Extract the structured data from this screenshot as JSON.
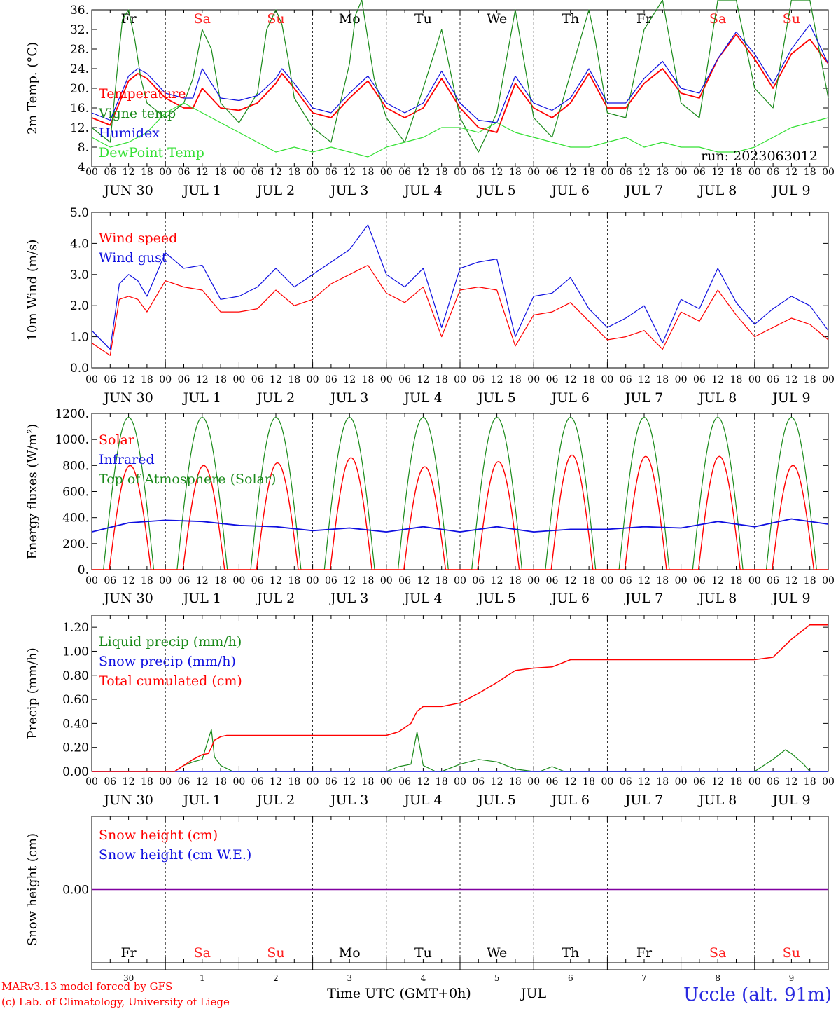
{
  "run_label": "run: 2023063012",
  "footer": {
    "model": "MARv3.13 model forced by GFS",
    "copyright": "(c) Lab. of Climatology, University of Liege",
    "time_axis": "Time UTC (GMT+0h)",
    "month": "JUL",
    "station": "Uccle (alt. 91m)"
  },
  "weekdays": [
    "Fr",
    "Sa",
    "Su",
    "Mo",
    "Tu",
    "We",
    "Th",
    "Fr",
    "Sa",
    "Su"
  ],
  "weekday_colors": [
    "#000000",
    "#ff2020",
    "#ff2020",
    "#000000",
    "#000000",
    "#000000",
    "#000000",
    "#000000",
    "#ff2020",
    "#ff2020"
  ],
  "day_numbers": [
    "30",
    "1",
    "2",
    "3",
    "4",
    "5",
    "6",
    "7",
    "8",
    "9"
  ],
  "day_labels": [
    "JUN 30",
    "JUL  1",
    "JUL  2",
    "JUL  3",
    "JUL  4",
    "JUL  5",
    "JUL  6",
    "JUL  7",
    "JUL  8",
    "JUL  9"
  ],
  "hour_ticks": [
    "00",
    "06",
    "12",
    "18"
  ],
  "hour_end": "00",
  "colors": {
    "red": "#ff0000",
    "green": "#1a8a1a",
    "blue": "#1010e0",
    "lightgreen": "#33e033",
    "purple": "#8000a0"
  },
  "chart_data": [
    {
      "type": "line",
      "ylabel": "2m Temp. (°C)",
      "ylim": [
        4,
        36
      ],
      "yticks": [
        "4.",
        "8.",
        "12.",
        "16.",
        "20.",
        "24.",
        "28.",
        "32.",
        "36."
      ],
      "x_unit": "hours since Jun 30 00 UTC",
      "series": [
        {
          "name": "Temperature",
          "color": "red",
          "x": [
            0,
            6,
            9,
            12,
            15,
            18,
            24,
            30,
            33,
            36,
            42,
            48,
            54,
            60,
            62,
            66,
            72,
            78,
            84,
            90,
            96,
            102,
            108,
            114,
            120,
            126,
            132,
            138,
            144,
            150,
            156,
            162,
            168,
            174,
            180,
            186,
            192,
            198,
            204,
            210,
            216,
            222,
            228,
            234,
            240
          ],
          "y": [
            14,
            12.5,
            17,
            21.5,
            23,
            22,
            18,
            16,
            16,
            20,
            16,
            15.5,
            17,
            21,
            23,
            20,
            15,
            14,
            18,
            21.5,
            16,
            14,
            16,
            22,
            16,
            12,
            11,
            21,
            16,
            14,
            17,
            23,
            16,
            16,
            21,
            24,
            19,
            18,
            26,
            31,
            26,
            20,
            27,
            30,
            25
          ]
        },
        {
          "name": "Vigne temp",
          "color": "green",
          "x": [
            0,
            6,
            9,
            10,
            12,
            14,
            16,
            18,
            24,
            30,
            33,
            36,
            39,
            42,
            48,
            54,
            57,
            60,
            62,
            64,
            66,
            72,
            78,
            84,
            86,
            88,
            90,
            92,
            96,
            102,
            108,
            114,
            120,
            126,
            132,
            138,
            144,
            150,
            156,
            162,
            164,
            168,
            174,
            180,
            186,
            192,
            198,
            204,
            210,
            216,
            222,
            228,
            234,
            240
          ],
          "y": [
            12,
            9,
            28,
            34,
            36,
            30,
            22,
            17,
            14,
            17,
            22,
            32,
            28,
            17,
            13,
            19,
            32,
            36,
            33,
            26,
            18,
            12,
            9,
            25,
            35,
            38,
            30,
            22,
            14,
            9,
            20,
            32,
            14,
            7,
            15,
            36,
            14,
            10,
            23,
            36,
            30,
            15,
            14,
            32,
            38,
            17,
            14,
            38,
            38,
            20,
            16,
            38,
            38,
            18
          ]
        },
        {
          "name": "Humidex",
          "color": "blue",
          "x": [
            0,
            6,
            9,
            12,
            15,
            18,
            24,
            30,
            33,
            36,
            42,
            48,
            54,
            60,
            62,
            66,
            72,
            78,
            84,
            90,
            96,
            102,
            108,
            114,
            120,
            126,
            132,
            138,
            144,
            150,
            156,
            162,
            168,
            174,
            180,
            186,
            192,
            198,
            204,
            210,
            216,
            222,
            228,
            234,
            240
          ],
          "y": [
            15,
            13.5,
            18,
            22.5,
            24,
            23,
            19,
            18,
            18,
            24,
            18,
            17.5,
            18.5,
            22,
            24,
            21,
            16,
            15,
            19,
            22.5,
            17,
            15,
            17,
            23.5,
            17,
            13.5,
            13,
            22.5,
            17,
            15.5,
            18,
            24,
            17,
            17,
            22,
            25.5,
            20,
            19,
            26,
            31.5,
            27,
            21,
            28,
            33,
            25
          ]
        },
        {
          "name": "DewPoint Temp",
          "color": "lightgreen",
          "x": [
            0,
            6,
            12,
            18,
            24,
            30,
            36,
            42,
            48,
            54,
            60,
            66,
            72,
            78,
            84,
            90,
            96,
            102,
            108,
            114,
            120,
            126,
            132,
            138,
            144,
            150,
            156,
            162,
            168,
            174,
            180,
            186,
            192,
            198,
            204,
            210,
            216,
            222,
            228,
            234,
            240
          ],
          "y": [
            10,
            8,
            9,
            11,
            15,
            17,
            15,
            13,
            11,
            9,
            7,
            8,
            7,
            8,
            7,
            6,
            8,
            9,
            10,
            12,
            12,
            11,
            13,
            11,
            10,
            9,
            8,
            8,
            9,
            10,
            8,
            9,
            8,
            8,
            7,
            7,
            8,
            10,
            12,
            13,
            14
          ]
        }
      ]
    },
    {
      "type": "line",
      "ylabel": "10m Wind (m/s)",
      "ylim": [
        0,
        5
      ],
      "yticks": [
        "0.0",
        "1.0",
        "2.0",
        "3.0",
        "4.0",
        "5.0"
      ],
      "series": [
        {
          "name": "Wind speed",
          "color": "red",
          "x": [
            0,
            6,
            9,
            12,
            15,
            18,
            24,
            30,
            36,
            42,
            48,
            54,
            60,
            66,
            72,
            78,
            84,
            90,
            96,
            102,
            108,
            114,
            120,
            126,
            132,
            138,
            144,
            150,
            156,
            162,
            168,
            174,
            180,
            186,
            192,
            198,
            204,
            210,
            216,
            222,
            228,
            234,
            240
          ],
          "y": [
            0.8,
            0.4,
            2.2,
            2.3,
            2.2,
            1.8,
            2.8,
            2.6,
            2.5,
            1.8,
            1.8,
            1.9,
            2.5,
            2.0,
            2.2,
            2.7,
            3.0,
            3.3,
            2.4,
            2.1,
            2.6,
            1.0,
            2.5,
            2.6,
            2.5,
            0.7,
            1.7,
            1.8,
            2.1,
            1.5,
            0.9,
            1.0,
            1.2,
            0.6,
            1.8,
            1.5,
            2.5,
            1.7,
            1.0,
            1.3,
            1.6,
            1.4,
            0.9
          ]
        },
        {
          "name": "Wind gust",
          "color": "blue",
          "x": [
            0,
            6,
            9,
            12,
            15,
            18,
            24,
            30,
            36,
            42,
            48,
            54,
            60,
            66,
            72,
            78,
            84,
            90,
            96,
            102,
            108,
            114,
            120,
            126,
            132,
            138,
            144,
            150,
            156,
            162,
            168,
            174,
            180,
            186,
            192,
            198,
            204,
            210,
            216,
            222,
            228,
            234,
            240
          ],
          "y": [
            1.2,
            0.6,
            2.7,
            3.0,
            2.8,
            2.3,
            3.7,
            3.2,
            3.3,
            2.2,
            2.3,
            2.6,
            3.2,
            2.6,
            3.0,
            3.4,
            3.8,
            4.6,
            3.0,
            2.6,
            3.2,
            1.3,
            3.2,
            3.4,
            3.5,
            1.0,
            2.3,
            2.4,
            2.9,
            1.9,
            1.3,
            1.6,
            2.0,
            0.8,
            2.2,
            1.9,
            3.2,
            2.1,
            1.4,
            1.9,
            2.3,
            2.0,
            1.2
          ]
        }
      ]
    },
    {
      "type": "line",
      "ylabel": "Energy fluxes (W/m²)",
      "ylim": [
        0,
        1200
      ],
      "yticks": [
        "0.",
        "200.",
        "400.",
        "600.",
        "800.",
        "1000.",
        "1200."
      ],
      "series": [
        {
          "name": "Solar",
          "color": "red",
          "daily_peak": [
            800,
            800,
            820,
            860,
            790,
            830,
            880,
            870,
            870,
            800
          ]
        },
        {
          "name": "Infrared",
          "color": "blue",
          "x": [
            0,
            12,
            24,
            36,
            48,
            60,
            72,
            84,
            96,
            108,
            120,
            132,
            144,
            156,
            168,
            180,
            192,
            204,
            216,
            228,
            240
          ],
          "y": [
            290,
            360,
            380,
            370,
            340,
            330,
            300,
            320,
            290,
            330,
            290,
            330,
            290,
            310,
            310,
            330,
            320,
            370,
            330,
            390,
            350
          ]
        },
        {
          "name": "Top of Atmosphere (Solar)",
          "color": "green",
          "daily_peak": [
            1170,
            1170,
            1170,
            1170,
            1170,
            1170,
            1170,
            1170,
            1170,
            1170
          ]
        }
      ]
    },
    {
      "type": "line",
      "ylabel": "Precip (mm/h)",
      "ylim": [
        0,
        1.3
      ],
      "yticks": [
        "0.00",
        "0.20",
        "0.40",
        "0.60",
        "0.80",
        "1.00",
        "1.20"
      ],
      "series": [
        {
          "name": "Liquid precip (mm/h)",
          "color": "green",
          "x": [
            0,
            27,
            30,
            33,
            36,
            39,
            40,
            42,
            46,
            96,
            100,
            104,
            106,
            108,
            112,
            114,
            120,
            126,
            132,
            138,
            144,
            146,
            150,
            154,
            156,
            216,
            222,
            226,
            228,
            232,
            234,
            240
          ],
          "y": [
            0,
            0,
            0.05,
            0.08,
            0.1,
            0.35,
            0.12,
            0.05,
            0,
            0,
            0.04,
            0.06,
            0.33,
            0.05,
            0,
            0,
            0.06,
            0.1,
            0.08,
            0.02,
            0,
            0,
            0.04,
            0,
            0,
            0,
            0.1,
            0.18,
            0.15,
            0.06,
            0,
            0
          ]
        },
        {
          "name": "Snow precip (mm/h)",
          "color": "blue",
          "x": [
            0,
            240
          ],
          "y": [
            0,
            0
          ]
        },
        {
          "name": "Total cumulated (cm)",
          "color": "red",
          "x": [
            0,
            27,
            30,
            33,
            36,
            38,
            39,
            40,
            42,
            44,
            48,
            96,
            100,
            104,
            106,
            108,
            114,
            120,
            126,
            132,
            138,
            144,
            150,
            156,
            162,
            168,
            216,
            222,
            228,
            234,
            240
          ],
          "y": [
            0,
            0,
            0.05,
            0.1,
            0.14,
            0.15,
            0.2,
            0.26,
            0.29,
            0.3,
            0.3,
            0.3,
            0.33,
            0.4,
            0.5,
            0.54,
            0.54,
            0.57,
            0.65,
            0.74,
            0.84,
            0.86,
            0.87,
            0.93,
            0.93,
            0.93,
            0.93,
            0.95,
            1.1,
            1.22,
            1.22
          ]
        }
      ]
    },
    {
      "type": "line",
      "ylabel": "Snow height (cm)",
      "yticks": [
        "0.00"
      ],
      "series": [
        {
          "name": "Snow height (cm)",
          "color": "red",
          "x": [
            0,
            240
          ],
          "y": [
            0,
            0
          ]
        },
        {
          "name": "Snow height (cm W.E.)",
          "color": "blue",
          "x": [
            0,
            240
          ],
          "y": [
            0,
            0
          ]
        }
      ]
    }
  ]
}
